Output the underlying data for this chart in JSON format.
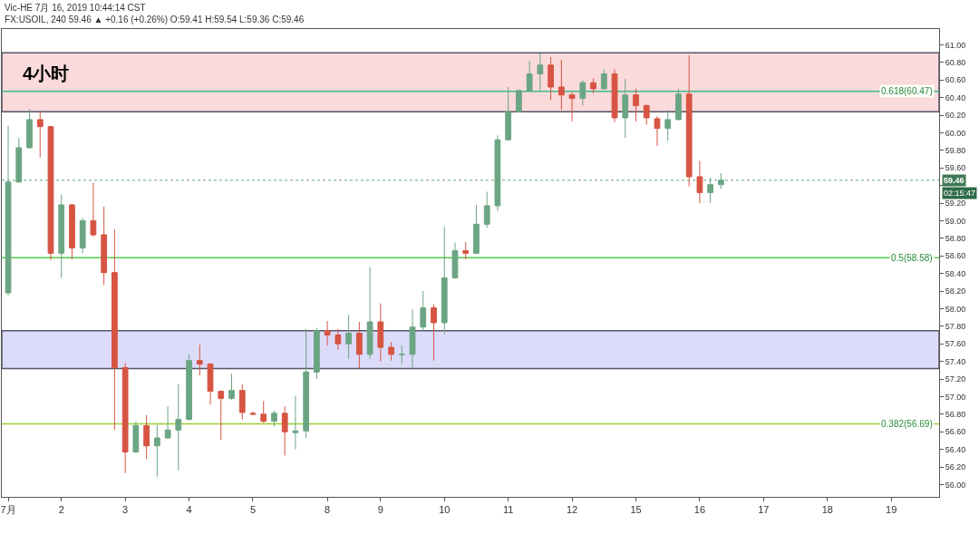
{
  "chart_data": {
    "type": "candlestick",
    "title": "Vic-HE 7月 16, 2019 10:44:14 CST",
    "subtitle": "FX:USOIL, 240 59.46 ▲ +0.16 (+0.26%) O:59.41 H:59.54 L:59.36 C:59.46",
    "annotations": [
      "4小时",
      "02:15:47"
    ],
    "categories": [
      "7月",
      null,
      null,
      null,
      null,
      "2",
      null,
      null,
      null,
      null,
      null,
      "3",
      null,
      null,
      null,
      null,
      null,
      "4",
      null,
      null,
      null,
      null,
      null,
      "5",
      null,
      null,
      null,
      null,
      null,
      null,
      "8",
      null,
      null,
      null,
      null,
      "9",
      null,
      null,
      null,
      null,
      null,
      "10",
      null,
      null,
      null,
      null,
      null,
      "11",
      null,
      null,
      null,
      null,
      null,
      "12",
      null,
      null,
      null,
      null,
      null,
      "15",
      null,
      null,
      null,
      null,
      null,
      "16",
      null,
      null,
      null,
      null,
      null,
      "17",
      null,
      null,
      null,
      null,
      null,
      "18",
      null,
      null,
      null,
      null,
      null,
      "19",
      null,
      null,
      null,
      null
    ],
    "series": [
      {
        "colors": [
          "#6ba583",
          "#6ba583",
          "#6ba583",
          "#d75442",
          "#d75442",
          "#6ba583",
          "#d75442",
          "#6ba583",
          "#d75442",
          "#d75442",
          "#d75442",
          "#d75442",
          "#6ba583",
          "#d75442",
          "#6ba583",
          "#6ba583",
          "#6ba583",
          "#6ba583",
          "#d75442",
          "#d75442",
          "#d75442",
          "#6ba583",
          "#d75442",
          "#d75442",
          "#d75442",
          "#6ba583",
          "#d75442",
          "#6ba583",
          "#6ba583",
          "#6ba583",
          "#d75442",
          "#d75442",
          "#6ba583",
          "#d75442",
          "#6ba583",
          "#d75442",
          "#d75442",
          "#6ba583",
          "#6ba583",
          "#6ba583",
          "#d75442",
          "#6ba583",
          "#6ba583",
          "#d75442",
          "#6ba583",
          "#6ba583",
          "#6ba583",
          "#6ba583",
          "#6ba583",
          "#6ba583",
          "#6ba583",
          "#d75442",
          "#d75442",
          "#d75442",
          "#6ba583",
          "#d75442",
          "#6ba583",
          "#d75442",
          "#6ba583",
          "#d75442",
          "#d75442",
          "#d75442",
          "#6ba583",
          "#6ba583",
          "#d75442",
          "#d75442",
          "#6ba583",
          "#6ba583",
          null,
          null,
          null,
          null,
          null,
          null,
          null,
          null,
          null,
          null,
          null,
          null,
          null,
          null,
          null,
          null,
          null,
          null,
          null,
          null
        ],
        "ohlc": [
          [
            58.18,
            60.08,
            58.15,
            59.44
          ],
          [
            59.44,
            59.94,
            59.43,
            59.83
          ],
          [
            59.83,
            60.27,
            59.82,
            60.15
          ],
          [
            60.15,
            60.24,
            59.72,
            60.07
          ],
          [
            60.07,
            60.08,
            58.55,
            58.63
          ],
          [
            58.63,
            59.3,
            58.35,
            59.18
          ],
          [
            59.18,
            59.19,
            58.56,
            58.69
          ],
          [
            58.69,
            59.03,
            58.63,
            59.0
          ],
          [
            59.0,
            59.43,
            58.82,
            58.84
          ],
          [
            58.84,
            59.16,
            58.27,
            58.41
          ],
          [
            58.41,
            58.9,
            56.62,
            57.33
          ],
          [
            57.33,
            57.38,
            56.13,
            56.37
          ],
          [
            56.37,
            56.72,
            56.36,
            56.67
          ],
          [
            56.67,
            56.79,
            56.29,
            56.44
          ],
          [
            56.44,
            56.68,
            56.09,
            56.53
          ],
          [
            56.53,
            56.89,
            56.52,
            56.62
          ],
          [
            56.62,
            57.14,
            56.16,
            56.74
          ],
          [
            56.74,
            57.48,
            56.73,
            57.41
          ],
          [
            57.41,
            57.59,
            57.24,
            57.37
          ],
          [
            57.37,
            57.38,
            56.91,
            57.06
          ],
          [
            57.06,
            57.07,
            56.51,
            56.98
          ],
          [
            56.98,
            57.26,
            56.96,
            57.07
          ],
          [
            57.07,
            57.14,
            56.74,
            56.82
          ],
          [
            56.81,
            56.83,
            56.79,
            56.8
          ],
          [
            56.8,
            56.95,
            56.7,
            56.72
          ],
          [
            56.72,
            56.84,
            56.66,
            56.81
          ],
          [
            56.81,
            56.89,
            56.33,
            56.6
          ],
          [
            56.59,
            57.01,
            56.4,
            56.61
          ],
          [
            56.61,
            57.77,
            56.53,
            57.28
          ],
          [
            57.28,
            57.78,
            57.2,
            57.75
          ],
          [
            57.75,
            57.86,
            57.58,
            57.7
          ],
          [
            57.7,
            57.77,
            57.53,
            57.6
          ],
          [
            57.6,
            57.93,
            57.43,
            57.72
          ],
          [
            57.72,
            57.85,
            57.32,
            57.48
          ],
          [
            57.48,
            58.47,
            57.43,
            57.85
          ],
          [
            57.85,
            58.06,
            57.4,
            57.56
          ],
          [
            57.56,
            57.62,
            57.41,
            57.48
          ],
          [
            57.48,
            57.58,
            57.37,
            57.48
          ],
          [
            57.48,
            57.99,
            57.33,
            57.79
          ],
          [
            57.79,
            58.2,
            57.74,
            58.01
          ],
          [
            58.01,
            58.05,
            57.41,
            57.84
          ],
          [
            57.84,
            58.93,
            57.71,
            58.35
          ],
          [
            58.35,
            58.75,
            58.34,
            58.66
          ],
          [
            58.66,
            58.76,
            58.56,
            58.63
          ],
          [
            58.63,
            59.18,
            58.62,
            58.96
          ],
          [
            58.96,
            59.33,
            58.92,
            59.17
          ],
          [
            59.17,
            59.97,
            59.11,
            59.92
          ],
          [
            59.92,
            60.52,
            59.91,
            60.24
          ],
          [
            60.24,
            60.49,
            60.23,
            60.48
          ],
          [
            60.48,
            60.82,
            60.47,
            60.67
          ],
          [
            60.67,
            60.9,
            60.48,
            60.77
          ],
          [
            60.77,
            60.86,
            60.37,
            60.52
          ],
          [
            60.52,
            60.83,
            60.26,
            60.43
          ],
          [
            60.43,
            60.46,
            60.13,
            60.39
          ],
          [
            60.39,
            60.6,
            60.31,
            60.57
          ],
          [
            60.57,
            60.62,
            60.45,
            60.5
          ],
          [
            60.5,
            60.72,
            60.49,
            60.67
          ],
          [
            60.67,
            60.72,
            60.12,
            60.17
          ],
          [
            60.17,
            60.61,
            59.94,
            60.43
          ],
          [
            60.43,
            60.5,
            60.13,
            60.31
          ],
          [
            60.31,
            60.32,
            60.09,
            60.17
          ],
          [
            60.16,
            60.19,
            59.85,
            60.05
          ],
          [
            60.05,
            60.26,
            59.91,
            60.15
          ],
          [
            60.15,
            60.5,
            60.14,
            60.44
          ],
          [
            60.44,
            60.88,
            59.39,
            59.5
          ],
          [
            59.5,
            59.68,
            59.2,
            59.32
          ],
          [
            59.32,
            59.49,
            59.2,
            59.41
          ],
          [
            59.41,
            59.54,
            59.36,
            59.46
          ],
          null,
          null,
          null,
          null,
          null,
          null,
          null,
          null,
          null,
          null,
          null,
          null,
          null,
          null,
          null,
          null,
          null,
          null,
          null,
          null
        ]
      }
    ],
    "ylim": [
      55.86,
      61.18
    ],
    "yticks": [
      {
        "value": 56,
        "label": "56.00"
      },
      {
        "value": 56.2,
        "label": "56.20"
      },
      {
        "value": 56.4,
        "label": "56.40"
      },
      {
        "value": 56.6,
        "label": "56.60"
      },
      {
        "value": 56.8,
        "label": "56.80"
      },
      {
        "value": 57,
        "label": "57.00"
      },
      {
        "value": 57.2,
        "label": "57.20"
      },
      {
        "value": 57.4,
        "label": "57.40"
      },
      {
        "value": 57.6,
        "label": "57.60"
      },
      {
        "value": 57.8,
        "label": "57.80"
      },
      {
        "value": 58,
        "label": "58.00"
      },
      {
        "value": 58.2,
        "label": "58.20"
      },
      {
        "value": 58.4,
        "label": "58.40"
      },
      {
        "value": 58.6,
        "label": "58.60"
      },
      {
        "value": 58.8,
        "label": "58.80"
      },
      {
        "value": 59,
        "label": "59.00"
      },
      {
        "value": 59.2,
        "label": "59.20"
      },
      {
        "value": 59.4,
        "label": null
      },
      {
        "value": 59.6,
        "label": "59.60"
      },
      {
        "value": 59.8,
        "label": "59.80"
      },
      {
        "value": 60,
        "label": "60.00"
      },
      {
        "value": 60.2,
        "label": "60.20"
      },
      {
        "value": 60.4,
        "label": "60.40"
      },
      {
        "value": 60.6,
        "label": "60.60"
      },
      {
        "value": 60.8,
        "label": "60.80"
      },
      {
        "value": 61,
        "label": "61.00"
      }
    ],
    "ref_lines": [
      {
        "axis": "y",
        "value": 60.47,
        "label": "0.618(60.47)",
        "color": "#3fb98a",
        "line_style": "solid"
      },
      {
        "axis": "y",
        "value": 58.58,
        "label": "0.5(58.58)",
        "color": "#4fcf45",
        "line_style": "solid"
      },
      {
        "axis": "y",
        "value": 56.69,
        "label": "0.382(56.69)",
        "color": "#9acd32",
        "line_style": "solid"
      },
      {
        "axis": "y",
        "value": 59.46,
        "label": "59.46",
        "color": "#6ba583",
        "line_style": "dotted"
      }
    ],
    "bands": [
      {
        "axis": "y",
        "from": 60.24,
        "to": 60.91,
        "color": "#fadada"
      },
      {
        "axis": "y",
        "from": 57.32,
        "to": 57.75,
        "color": "#dcdcfa"
      }
    ],
    "grid": false
  }
}
